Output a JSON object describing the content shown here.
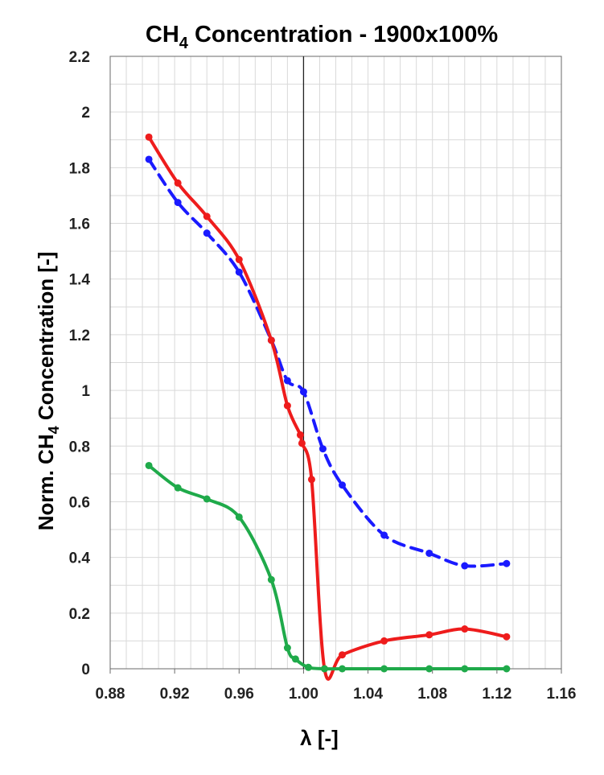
{
  "chart_data": {
    "type": "line",
    "title": {
      "main": "CH",
      "sub": "4",
      "rest": " Concentration - 1900x100%"
    },
    "xlabel": "λ [-]",
    "ylabel": {
      "main": "Norm. CH",
      "sub": "4",
      "rest": " Concentration [-]"
    },
    "xlim": [
      0.88,
      1.16
    ],
    "ylim": [
      0,
      2.2
    ],
    "xticks": [
      0.88,
      0.92,
      0.96,
      1.0,
      1.04,
      1.08,
      1.12,
      1.16
    ],
    "xtick_labels": [
      "0.88",
      "0.92",
      "0.96",
      "1.00",
      "1.04",
      "1.08",
      "1.12",
      "1.16"
    ],
    "yticks": [
      0,
      0.2,
      0.4,
      0.6,
      0.8,
      1,
      1.2,
      1.4,
      1.6,
      1.8,
      2,
      2.2
    ],
    "ytick_labels": [
      "0",
      "0.2",
      "0.4",
      "0.6",
      "0.8",
      "1",
      "1.2",
      "1.4",
      "1.6",
      "1.8",
      "2",
      "2.2"
    ],
    "grid": true,
    "reference_line_x": 1.0,
    "series": [
      {
        "color": "#1a1aff",
        "style": "dashed",
        "x": [
          0.904,
          0.922,
          0.94,
          0.96,
          0.98,
          0.99,
          1.0,
          1.012,
          1.024,
          1.05,
          1.078,
          1.1,
          1.126
        ],
        "y": [
          1.83,
          1.675,
          1.565,
          1.425,
          1.18,
          1.035,
          0.995,
          0.79,
          0.66,
          0.48,
          0.415,
          0.37,
          0.378
        ]
      },
      {
        "color": "#ee1c1c",
        "style": "solid",
        "x": [
          0.904,
          0.922,
          0.94,
          0.96,
          0.98,
          0.99,
          0.998,
          0.999,
          1.005,
          1.013,
          1.024,
          1.05,
          1.078,
          1.1,
          1.126
        ],
        "y": [
          1.91,
          1.745,
          1.625,
          1.47,
          1.18,
          0.945,
          0.84,
          0.81,
          0.68,
          0.0,
          0.05,
          0.1,
          0.122,
          0.143,
          0.115
        ]
      },
      {
        "color": "#1faa4a",
        "style": "solid",
        "x": [
          0.904,
          0.922,
          0.94,
          0.96,
          0.98,
          0.99,
          0.995,
          1.003,
          1.013,
          1.024,
          1.05,
          1.078,
          1.1,
          1.126
        ],
        "y": [
          0.73,
          0.65,
          0.61,
          0.545,
          0.32,
          0.075,
          0.035,
          0.005,
          0.0,
          0.0,
          0.0,
          0.0,
          0.0,
          0.0
        ]
      }
    ]
  }
}
